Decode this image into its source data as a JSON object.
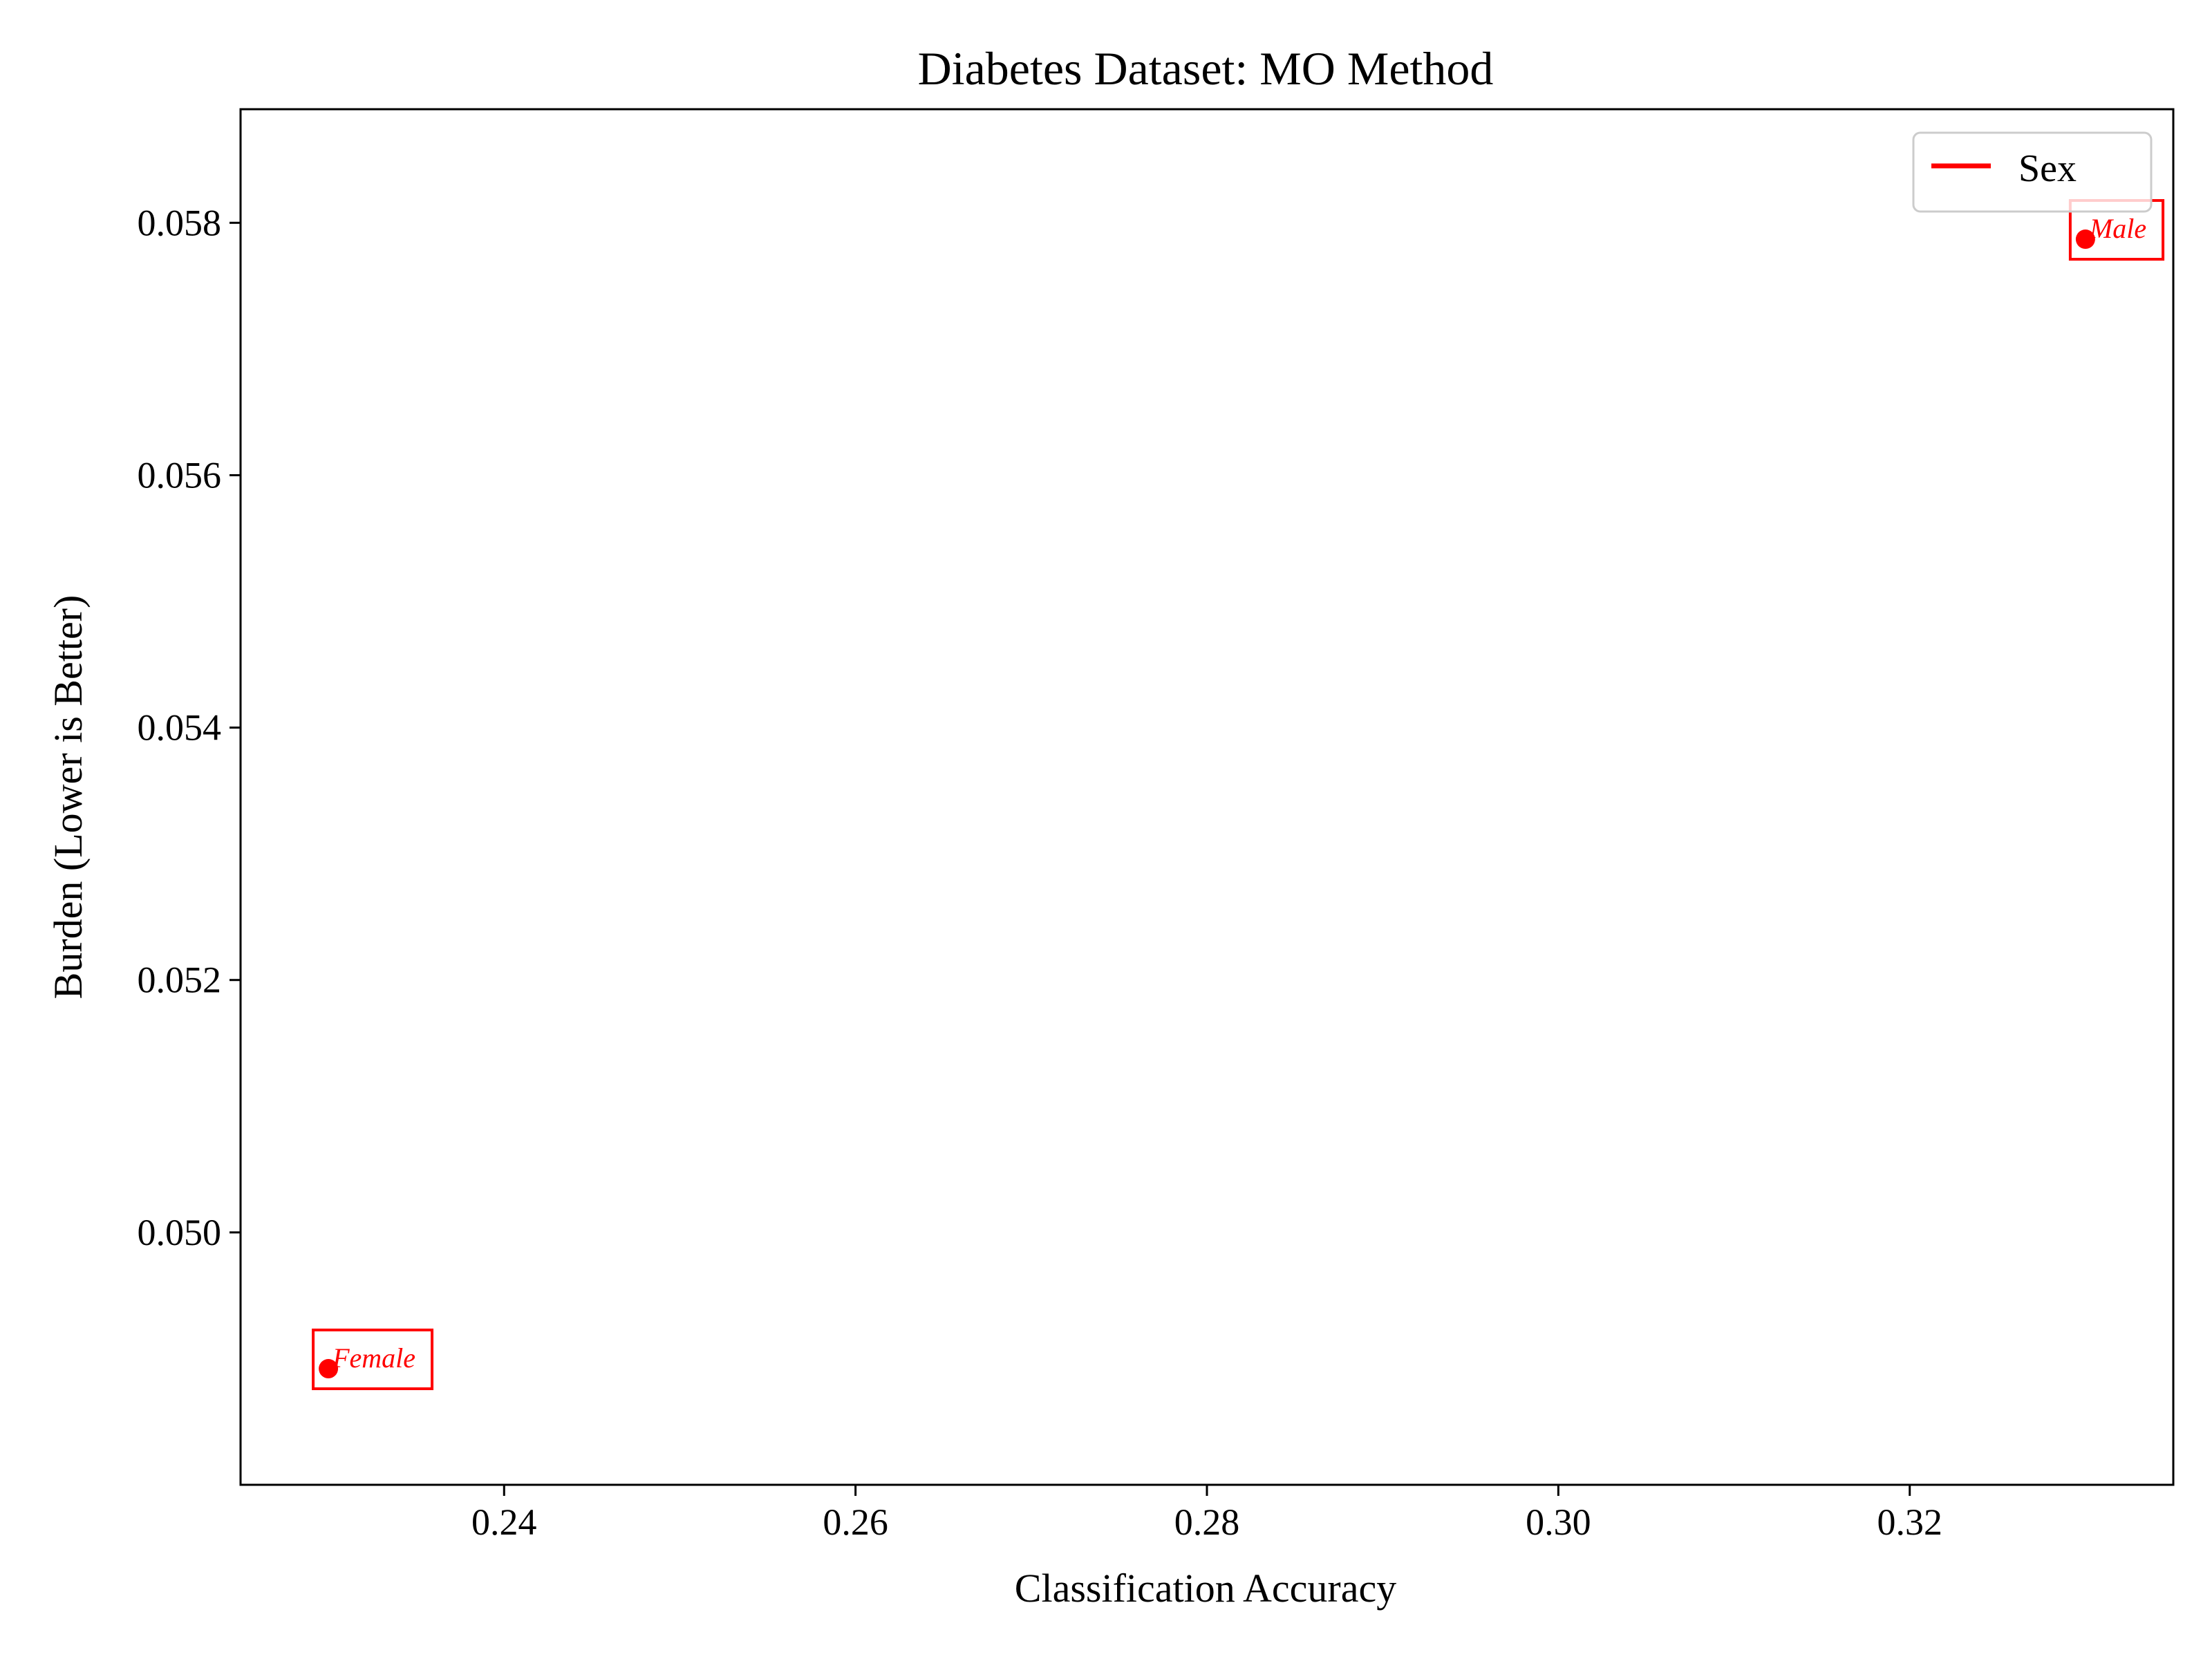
{
  "chart_data": {
    "type": "scatter",
    "title": "Diabetes Dataset: MO Method",
    "xlabel": "Classification Accuracy",
    "ylabel": "Burden (Lower is Better)",
    "xlim": [
      0.225,
      0.335
    ],
    "ylim": [
      0.048,
      0.0589
    ],
    "xticks": [
      0.24,
      0.26,
      0.28,
      0.3,
      0.32
    ],
    "xtick_labels": [
      "0.24",
      "0.26",
      "0.28",
      "0.30",
      "0.32"
    ],
    "yticks": [
      0.05,
      0.052,
      0.054,
      0.056,
      0.058
    ],
    "ytick_labels": [
      "0.050",
      "0.052",
      "0.054",
      "0.056",
      "0.058"
    ],
    "grid": false,
    "legend": {
      "position": "top-right",
      "entries": [
        {
          "label": "Sex",
          "color": "#ff0000",
          "marker": "line"
        }
      ]
    },
    "series": [
      {
        "name": "Sex",
        "color": "#ff0000",
        "points": [
          {
            "x": 0.23,
            "y": 0.04892,
            "label": "Female"
          },
          {
            "x": 0.33,
            "y": 0.05787,
            "label": "Male"
          }
        ]
      }
    ]
  }
}
